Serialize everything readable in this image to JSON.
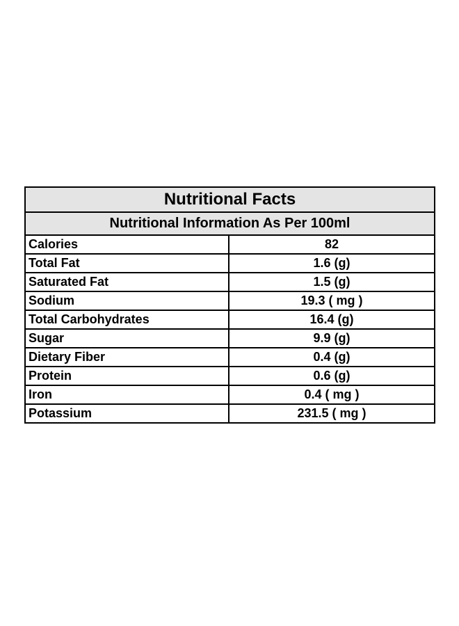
{
  "table": {
    "title": "Nutritional Facts",
    "subtitle": "Nutritional Information As Per 100ml",
    "rows": [
      {
        "label": "Calories",
        "value": "82"
      },
      {
        "label": "Total Fat",
        "value": "1.6 (g)"
      },
      {
        "label": "Saturated Fat",
        "value": "1.5 (g)"
      },
      {
        "label": "Sodium",
        "value": "19.3 ( mg )"
      },
      {
        "label": "Total Carbohydrates",
        "value": "16.4 (g)"
      },
      {
        "label": "Sugar",
        "value": "9.9 (g)"
      },
      {
        "label": "Dietary Fiber",
        "value": "0.4 (g)"
      },
      {
        "label": "Protein",
        "value": "0.6 (g)"
      },
      {
        "label": "Iron",
        "value": "0.4 ( mg )"
      },
      {
        "label": "Potassium",
        "value": "231.5 ( mg )"
      }
    ]
  },
  "colors": {
    "header_background": "#e4e4e4",
    "border": "#000000",
    "text": "#000000"
  }
}
